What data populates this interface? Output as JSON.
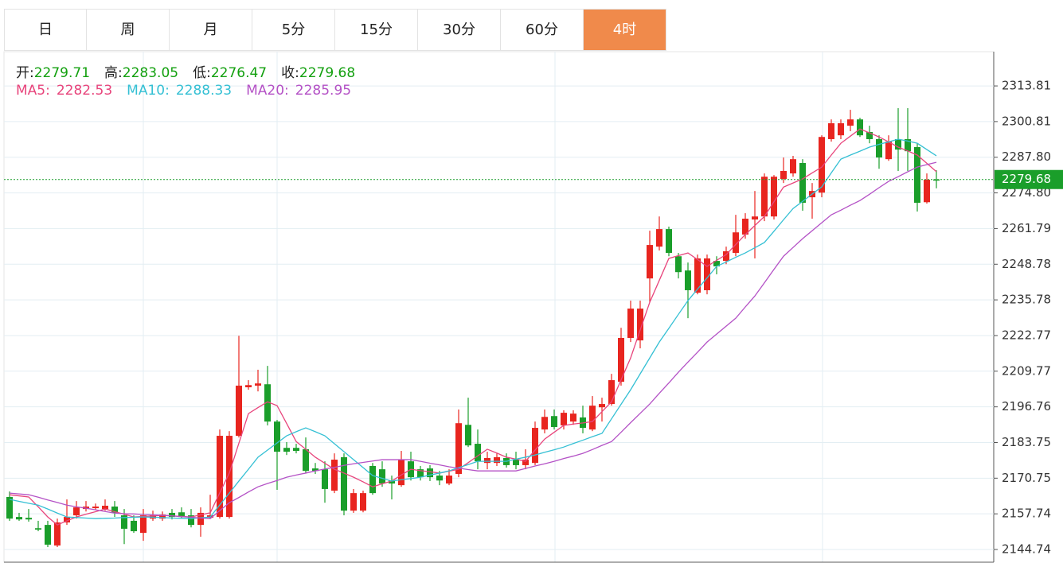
{
  "chart_data": {
    "type": "candlestick",
    "tabs": [
      "日",
      "周",
      "月",
      "5分",
      "15分",
      "30分",
      "60分",
      "4时"
    ],
    "active_tab": 7,
    "ohlc_labels": [
      "开:",
      "高:",
      "低:",
      "收:"
    ],
    "up_color": "#e8251f",
    "down_color": "#1a9e2a",
    "last_price_color": "#1a9e2a",
    "ylim": [
      2140.1,
      2326.3
    ],
    "yticks": [
      2144.74,
      2157.74,
      2170.75,
      2183.75,
      2196.76,
      2209.77,
      2222.77,
      2235.78,
      2248.78,
      2261.79,
      {
        "value": 2274.8,
        "label": "2274.80"
      },
      {
        "value": 2287.8,
        "label": "2287.80"
      },
      2300.81,
      2313.81
    ],
    "grid": true,
    "open": [
      2163.9,
      2156.6,
      2156.3,
      2152.5,
      2153.7,
      2146.2,
      2154.6,
      2157.2,
      2159.5,
      2159.8,
      2159.5,
      2160.4,
      2157.2,
      2155.2,
      2150.8,
      2156.0,
      2156.0,
      2158.1,
      2158.3,
      2157.2,
      2153.7,
      2156.3,
      2156.6,
      2156.6,
      2186.2,
      2203.9,
      2204.5,
      2205.0,
      2191.4,
      2181.8,
      2181.8,
      2181.3,
      2174.3,
      2174.0,
      2166.2,
      2178.4,
      2158.9,
      2158.9,
      2175.2,
      2174.0,
      2169.9,
      2168.2,
      2176.9,
      2174.0,
      2174.3,
      2171.7,
      2168.8,
      2172.3,
      2190.2,
      2183.3,
      2176.3,
      2176.3,
      2178.1,
      2177.5,
      2175.5,
      2176.3,
      2188.5,
      2193.4,
      2190.0,
      2191.4,
      2192.9,
      2188.5,
      2196.6,
      2197.8,
      2205.9,
      2221.9,
      2221.0,
      2243.6,
      2255.2,
      2261.6,
      2251.7,
      2246.5,
      2238.4,
      2239.3,
      2250.0,
      2250.0,
      2252.9,
      2259.6,
      2265.1,
      2266.2,
      2266.2,
      2279.9,
      2281.9,
      2285.7,
      2273.2,
      2274.9,
      2294.4,
      2295.8,
      2299.3,
      2301.6,
      2297.0,
      2294.4,
      2287.1,
      2294.4,
      2294.4,
      2291.5,
      2271.4,
      2279.71
    ],
    "high": [
      2165.9,
      2158.1,
      2159.5,
      2155.2,
      2155.2,
      2156.0,
      2163.0,
      2162.4,
      2162.4,
      2161.5,
      2163.0,
      2162.4,
      2159.5,
      2157.2,
      2159.5,
      2158.9,
      2158.6,
      2159.5,
      2160.1,
      2159.5,
      2160.1,
      2164.7,
      2188.5,
      2187.9,
      2222.7,
      2206.5,
      2210.3,
      2211.7,
      2192.0,
      2183.9,
      2183.3,
      2185.6,
      2176.3,
      2176.9,
      2179.8,
      2179.8,
      2166.8,
      2166.2,
      2176.3,
      2176.9,
      2171.7,
      2180.7,
      2180.4,
      2175.2,
      2175.5,
      2173.4,
      2174.0,
      2195.8,
      2200.1,
      2188.5,
      2180.4,
      2179.8,
      2179.8,
      2180.4,
      2181.3,
      2191.4,
      2195.8,
      2195.8,
      2195.5,
      2195.5,
      2197.2,
      2200.7,
      2200.1,
      2208.8,
      2225.6,
      2235.5,
      2235.5,
      2261.0,
      2266.2,
      2262.5,
      2252.9,
      2249.4,
      2252.3,
      2252.3,
      2251.7,
      2255.2,
      2266.8,
      2267.4,
      2275.5,
      2281.9,
      2281.3,
      2287.7,
      2288.3,
      2287.1,
      2278.4,
      2295.8,
      2301.6,
      2301.6,
      2305.1,
      2302.2,
      2299.3,
      2295.8,
      2295.8,
      2305.7,
      2305.7,
      2292.9,
      2281.9,
      2283.05
    ],
    "low": [
      2155.2,
      2155.2,
      2154.9,
      2151.4,
      2145.6,
      2145.6,
      2153.7,
      2156.0,
      2158.6,
      2159.2,
      2158.9,
      2156.6,
      2146.7,
      2150.8,
      2147.9,
      2155.2,
      2155.2,
      2155.7,
      2156.0,
      2152.8,
      2149.4,
      2156.0,
      2156.0,
      2156.0,
      2185.6,
      2203.0,
      2202.4,
      2190.0,
      2166.5,
      2179.2,
      2179.8,
      2172.6,
      2172.3,
      2161.8,
      2165.3,
      2157.2,
      2158.1,
      2158.3,
      2164.7,
      2167.6,
      2163.0,
      2167.6,
      2169.9,
      2169.9,
      2169.7,
      2168.2,
      2168.2,
      2171.1,
      2182.1,
      2174.0,
      2174.0,
      2175.2,
      2174.6,
      2174.0,
      2174.0,
      2175.5,
      2187.1,
      2188.5,
      2188.5,
      2190.2,
      2187.1,
      2187.9,
      2191.4,
      2197.2,
      2204.5,
      2220.4,
      2218.1,
      2234.9,
      2253.8,
      2251.7,
      2243.6,
      2229.1,
      2237.8,
      2237.8,
      2245.1,
      2248.8,
      2251.7,
      2258.1,
      2250.9,
      2264.5,
      2265.1,
      2278.4,
      2280.7,
      2268.3,
      2265.4,
      2273.2,
      2293.5,
      2294.4,
      2297.3,
      2295.2,
      2292.9,
      2283.6,
      2286.5,
      2282.8,
      2282.8,
      2268.0,
      2270.9,
      2276.47
    ],
    "close": [
      2156.0,
      2155.7,
      2155.7,
      2152.0,
      2146.5,
      2154.6,
      2156.6,
      2160.1,
      2160.4,
      2160.4,
      2160.7,
      2158.1,
      2152.3,
      2151.4,
      2157.2,
      2157.2,
      2157.5,
      2156.6,
      2156.6,
      2153.7,
      2158.1,
      2157.2,
      2186.2,
      2186.2,
      2204.5,
      2204.7,
      2205.3,
      2191.4,
      2180.4,
      2180.4,
      2180.7,
      2173.4,
      2173.4,
      2166.8,
      2177.5,
      2158.9,
      2165.3,
      2165.3,
      2165.3,
      2168.8,
      2168.8,
      2177.5,
      2171.1,
      2171.1,
      2171.1,
      2169.9,
      2171.7,
      2190.8,
      2182.7,
      2176.9,
      2178.1,
      2178.4,
      2175.5,
      2175.5,
      2177.5,
      2189.1,
      2193.1,
      2189.4,
      2194.6,
      2194.3,
      2189.1,
      2197.2,
      2197.8,
      2206.5,
      2221.9,
      2232.6,
      2232.6,
      2255.8,
      2261.6,
      2252.9,
      2245.9,
      2239.3,
      2250.9,
      2250.9,
      2248.0,
      2253.5,
      2260.4,
      2265.4,
      2266.2,
      2280.7,
      2280.7,
      2282.8,
      2287.1,
      2271.2,
      2275.5,
      2295.2,
      2300.2,
      2300.2,
      2301.6,
      2295.8,
      2294.4,
      2287.7,
      2293.5,
      2290.6,
      2290.0,
      2271.2,
      2279.6,
      2279.68
    ],
    "series": [
      {
        "name": "MA5:",
        "color": "#e8457c",
        "values": [
          2164.7,
          2164.3,
          2163.9,
          2160.3,
          2156.6,
          2153.7,
          2155.2,
          2156.6,
          2157.6,
          2158.5,
          2159.5,
          2158.5,
          2157.6,
          2156.6,
          2156.8,
          2157.0,
          2157.2,
          2157.0,
          2156.8,
          2156.6,
          2157.4,
          2158.1,
          2165.4,
          2172.6,
          2183.5,
          2194.3,
          2196.5,
          2198.6,
          2197.2,
          2190.7,
          2184.1,
          2181.3,
          2178.4,
          2176.2,
          2174.0,
          2172.6,
          2171.1,
          2169.4,
          2167.6,
          2168.7,
          2169.7,
          2171.9,
          2174.0,
          2173.5,
          2173.1,
          2172.6,
          2173.3,
          2174.0,
          2176.4,
          2178.9,
          2181.3,
          2179.9,
          2178.4,
          2177.7,
          2176.9,
          2181.0,
          2185.0,
          2187.5,
          2190.0,
          2190.5,
          2190.9,
          2191.4,
          2195.0,
          2198.6,
          2206.6,
          2214.6,
          2224.8,
          2234.9,
          2242.9,
          2250.9,
          2251.9,
          2252.9,
          2250.5,
          2248.0,
          2250.2,
          2252.3,
          2256.0,
          2259.6,
          2262.9,
          2266.2,
          2271.6,
          2276.9,
          2278.4,
          2279.9,
          2282.1,
          2284.2,
          2288.6,
          2292.9,
          2295.5,
          2298.1,
          2296.7,
          2295.2,
          2293.4,
          2291.5,
          2290.1,
          2288.6,
          2285.6,
          2282.53
        ]
      },
      {
        "name": "MA10:",
        "color": "#35c0d4",
        "values": [
          2163.0,
          2162.3,
          2161.6,
          2160.9,
          2159.5,
          2158.0,
          2156.6,
          2156.4,
          2156.2,
          2156.0,
          2156.1,
          2156.2,
          2156.4,
          2156.5,
          2156.6,
          2156.5,
          2156.4,
          2156.2,
          2156.1,
          2156.0,
          2156.3,
          2156.6,
          2161.0,
          2165.3,
          2169.7,
          2174.0,
          2178.4,
          2181.0,
          2183.6,
          2186.2,
          2187.7,
          2189.1,
          2187.7,
          2186.2,
          2183.3,
          2180.4,
          2177.5,
          2174.6,
          2171.7,
          2170.7,
          2169.7,
          2170.2,
          2170.6,
          2171.1,
          2171.9,
          2172.6,
          2173.4,
          2174.6,
          2175.7,
          2176.9,
          2176.9,
          2176.9,
          2176.9,
          2177.7,
          2178.4,
          2179.2,
          2180.2,
          2181.1,
          2182.1,
          2183.4,
          2184.6,
          2185.9,
          2187.1,
          2192.4,
          2197.7,
          2203.0,
          2208.8,
          2214.6,
          2220.4,
          2225.4,
          2230.5,
          2235.5,
          2239.7,
          2243.8,
          2248.0,
          2249.6,
          2251.3,
          2252.9,
          2254.8,
          2256.7,
          2260.8,
          2265.0,
          2269.1,
          2271.7,
          2274.4,
          2277.0,
          2282.1,
          2287.1,
          2288.6,
          2290.0,
          2291.5,
          2292.5,
          2293.4,
          2294.4,
          2293.7,
          2292.9,
          2290.6,
          2288.33
        ]
      },
      {
        "name": "MA20:",
        "color": "#b452c6",
        "values": [
          2165.3,
          2165.0,
          2164.7,
          2163.8,
          2162.8,
          2161.9,
          2160.9,
          2160.3,
          2159.8,
          2159.2,
          2158.6,
          2158.0,
          2157.8,
          2157.7,
          2157.5,
          2157.4,
          2157.2,
          2157.0,
          2156.7,
          2156.5,
          2156.2,
          2156.0,
          2158.9,
          2161.8,
          2163.7,
          2165.7,
          2167.6,
          2168.8,
          2169.9,
          2171.1,
          2171.9,
          2172.6,
          2173.4,
          2174.1,
          2174.7,
          2175.4,
          2176.0,
          2176.5,
          2177.0,
          2177.5,
          2177.5,
          2177.5,
          2177.5,
          2176.9,
          2176.2,
          2175.6,
          2174.9,
          2174.4,
          2173.9,
          2173.4,
          2173.4,
          2173.4,
          2173.4,
          2173.4,
          2174.3,
          2175.2,
          2176.0,
          2176.9,
          2177.9,
          2178.8,
          2179.8,
          2181.2,
          2182.7,
          2184.1,
          2187.5,
          2191.0,
          2194.4,
          2197.8,
          2201.7,
          2205.5,
          2209.4,
          2213.1,
          2216.7,
          2220.4,
          2223.3,
          2226.2,
          2229.1,
          2233.2,
          2237.2,
          2242.0,
          2246.9,
          2251.7,
          2254.9,
          2258.1,
          2261.0,
          2263.9,
          2266.8,
          2268.5,
          2270.3,
          2272.0,
          2274.3,
          2276.7,
          2279.0,
          2280.7,
          2282.5,
          2284.2,
          2285.1,
          2285.95
        ]
      }
    ]
  }
}
